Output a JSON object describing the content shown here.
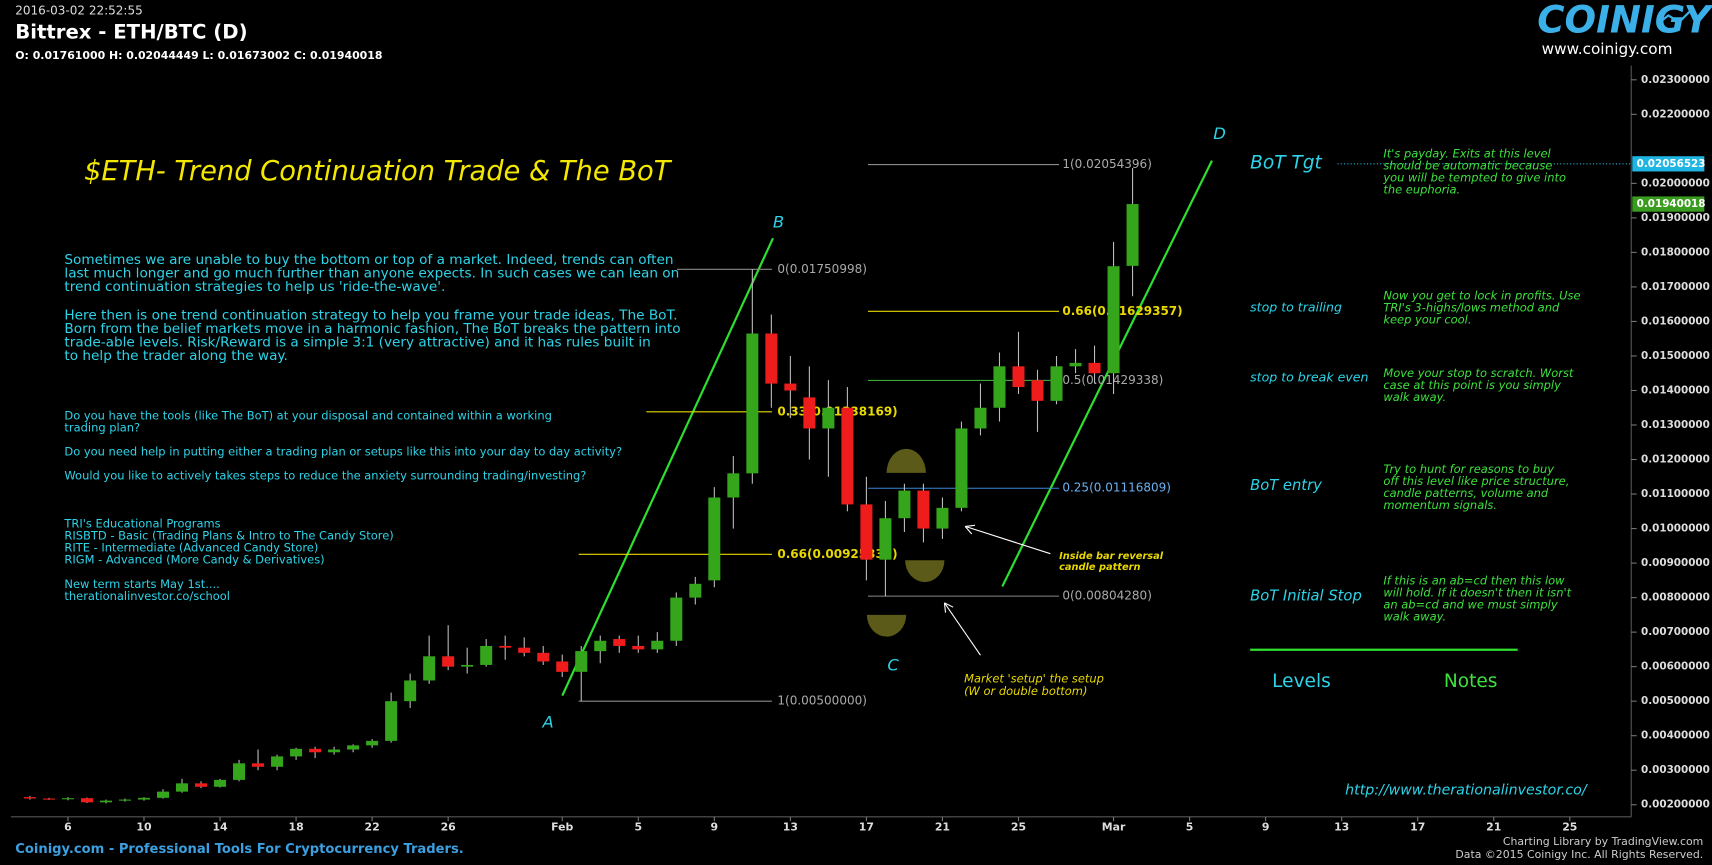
{
  "header": {
    "timestamp": "2016-03-02 22:52:55",
    "symbol": "Bittrex - ETH/BTC (D)",
    "ohlc": "O: 0.01761000 H: 0.02044449 L: 0.01673002 C: 0.01940018"
  },
  "logo": {
    "name": "COINIGY",
    "url": "www.coinigy.com"
  },
  "footer": {
    "left": "Coinigy.com - Professional Tools For Cryptocurrency Traders.",
    "right1": "Charting Library by TradingView.com",
    "right2": "Data ©2015 Coinigy Inc. All Rights Reserved."
  },
  "chart_data": {
    "type": "candlestick",
    "title": "$ETH- Trend Continuation Trade & The BoT",
    "x": [
      "01-04",
      "01-05",
      "01-06",
      "01-07",
      "01-08",
      "01-09",
      "01-10",
      "01-11",
      "01-12",
      "01-13",
      "01-14",
      "01-15",
      "01-16",
      "01-17",
      "01-18",
      "01-19",
      "01-20",
      "01-21",
      "01-22",
      "01-23",
      "01-24",
      "01-25",
      "01-26",
      "01-27",
      "01-28",
      "01-29",
      "01-30",
      "01-31",
      "02-01",
      "02-02",
      "02-03",
      "02-04",
      "02-05",
      "02-06",
      "02-07",
      "02-08",
      "02-09",
      "02-10",
      "02-11",
      "02-12",
      "02-13",
      "02-14",
      "02-15",
      "02-16",
      "02-17",
      "02-18",
      "02-19",
      "02-20",
      "02-21",
      "02-22",
      "02-23",
      "02-24",
      "02-25",
      "02-26",
      "02-27",
      "02-28",
      "02-29",
      "03-01",
      "03-02"
    ],
    "open": [
      0.00222,
      0.00218,
      0.00216,
      0.00219,
      0.00207,
      0.00212,
      0.00215,
      0.0022,
      0.00238,
      0.00262,
      0.00252,
      0.00272,
      0.0032,
      0.0031,
      0.0034,
      0.00362,
      0.00352,
      0.0036,
      0.00372,
      0.00385,
      0.005,
      0.0056,
      0.0063,
      0.006,
      0.00605,
      0.0066,
      0.00655,
      0.0064,
      0.00615,
      0.00585,
      0.00645,
      0.0068,
      0.0066,
      0.0065,
      0.00675,
      0.008,
      0.0085,
      0.0109,
      0.0116,
      0.01565,
      0.0142,
      0.0138,
      0.0129,
      0.0135,
      0.0107,
      0.0091,
      0.0103,
      0.0111,
      0.01,
      0.0106,
      0.0129,
      0.0135,
      0.0147,
      0.0143,
      0.0137,
      0.0147,
      0.0148,
      0.0145,
      0.01761
    ],
    "high": [
      0.00225,
      0.0022,
      0.00222,
      0.00221,
      0.00215,
      0.00218,
      0.00222,
      0.00245,
      0.00275,
      0.00268,
      0.00275,
      0.0033,
      0.0036,
      0.00345,
      0.00365,
      0.00368,
      0.00368,
      0.00375,
      0.0039,
      0.00525,
      0.0058,
      0.0069,
      0.0072,
      0.00655,
      0.0068,
      0.0069,
      0.00685,
      0.0066,
      0.00635,
      0.0066,
      0.0069,
      0.0069,
      0.0069,
      0.007,
      0.00815,
      0.0086,
      0.0112,
      0.0121,
      0.01750998,
      0.0162,
      0.015,
      0.0147,
      0.0143,
      0.0141,
      0.0115,
      0.0108,
      0.0113,
      0.0113,
      0.0109,
      0.0131,
      0.0142,
      0.0151,
      0.0157,
      0.0146,
      0.015,
      0.0152,
      0.0153,
      0.0183,
      0.02044449
    ],
    "low": [
      0.00215,
      0.00214,
      0.00213,
      0.00205,
      0.00204,
      0.00209,
      0.00212,
      0.00218,
      0.00235,
      0.00248,
      0.0025,
      0.00268,
      0.003,
      0.003,
      0.0033,
      0.00335,
      0.00345,
      0.00352,
      0.00365,
      0.0038,
      0.0048,
      0.0055,
      0.0059,
      0.0058,
      0.006,
      0.0062,
      0.0063,
      0.00605,
      0.0057,
      0.005,
      0.0061,
      0.0064,
      0.0064,
      0.0064,
      0.0066,
      0.0078,
      0.0083,
      0.01,
      0.0113,
      0.0135,
      0.0132,
      0.012,
      0.0115,
      0.0105,
      0.0085,
      0.0080428,
      0.0099,
      0.0096,
      0.0097,
      0.0105,
      0.0127,
      0.0131,
      0.0139,
      0.0128,
      0.0136,
      0.0145,
      0.0142,
      0.0139,
      0.01673002
    ],
    "close": [
      0.00218,
      0.00216,
      0.00219,
      0.00207,
      0.00212,
      0.00215,
      0.0022,
      0.00238,
      0.00262,
      0.00252,
      0.00272,
      0.0032,
      0.0031,
      0.0034,
      0.00362,
      0.00352,
      0.0036,
      0.00372,
      0.00385,
      0.005,
      0.0056,
      0.0063,
      0.006,
      0.00605,
      0.0066,
      0.00655,
      0.0064,
      0.00615,
      0.00585,
      0.00645,
      0.00675,
      0.0066,
      0.0065,
      0.00675,
      0.008,
      0.0084,
      0.0109,
      0.0116,
      0.01565,
      0.0142,
      0.014,
      0.0129,
      0.0135,
      0.0107,
      0.0091,
      0.0103,
      0.0111,
      0.01,
      0.0106,
      0.0129,
      0.0135,
      0.0147,
      0.0141,
      0.0137,
      0.0147,
      0.0148,
      0.0145,
      0.0176,
      0.01940018
    ],
    "up_color": "#35a61c",
    "down_color": "#ef1c1c",
    "xlim": [
      "01-03",
      "03-28"
    ],
    "xticks": [
      {
        "value": "01-06",
        "label": "6"
      },
      {
        "value": "01-10",
        "label": "10"
      },
      {
        "value": "01-14",
        "label": "14"
      },
      {
        "value": "01-18",
        "label": "18"
      },
      {
        "value": "01-22",
        "label": "22"
      },
      {
        "value": "01-26",
        "label": "26"
      },
      {
        "value": "02-01",
        "label": "Feb"
      },
      {
        "value": "02-05",
        "label": "5"
      },
      {
        "value": "02-09",
        "label": "9"
      },
      {
        "value": "02-13",
        "label": "13"
      },
      {
        "value": "02-17",
        "label": "17"
      },
      {
        "value": "02-21",
        "label": "21"
      },
      {
        "value": "02-25",
        "label": "25"
      },
      {
        "value": "03-01",
        "label": "Mar"
      },
      {
        "value": "03-05",
        "label": "5"
      },
      {
        "value": "03-09",
        "label": "9"
      },
      {
        "value": "03-13",
        "label": "13"
      },
      {
        "value": "03-17",
        "label": "17"
      },
      {
        "value": "03-21",
        "label": "21"
      },
      {
        "value": "03-25",
        "label": "25"
      }
    ],
    "ylim": [
      0.00165,
      0.02341
    ],
    "yticks": [
      {
        "value": 0.002,
        "label": "0.00200000"
      },
      {
        "value": 0.003,
        "label": "0.00300000"
      },
      {
        "value": 0.004,
        "label": "0.00400000"
      },
      {
        "value": 0.005,
        "label": "0.00500000"
      },
      {
        "value": 0.006,
        "label": "0.00600000"
      },
      {
        "value": 0.007,
        "label": "0.00700000"
      },
      {
        "value": 0.008,
        "label": "0.00800000"
      },
      {
        "value": 0.009,
        "label": "0.00900000"
      },
      {
        "value": 0.01,
        "label": "0.01000000"
      },
      {
        "value": 0.011,
        "label": "0.01100000"
      },
      {
        "value": 0.012,
        "label": "0.01200000"
      },
      {
        "value": 0.013,
        "label": "0.01300000"
      },
      {
        "value": 0.014,
        "label": "0.01400000"
      },
      {
        "value": 0.015,
        "label": "0.01500000"
      },
      {
        "value": 0.016,
        "label": "0.01600000"
      },
      {
        "value": 0.017,
        "label": "0.01700000"
      },
      {
        "value": 0.018,
        "label": "0.01800000"
      },
      {
        "value": 0.019,
        "label": "0.01900000"
      },
      {
        "value": 0.02,
        "label": "0.02000000"
      },
      {
        "value": 0.022,
        "label": "0.02200000"
      },
      {
        "value": 0.023,
        "label": "0.02300000"
      }
    ],
    "price_tags": [
      {
        "value": 0.02056523,
        "color": "#1fb5e3"
      },
      {
        "value": 0.01940018,
        "color": "#3a9c1f"
      }
    ],
    "fib_ab": [
      {
        "label": "0(0.01750998)",
        "value": 0.01750998,
        "color": "#8a8a8a"
      },
      {
        "label": "0.33(0.01338169)",
        "value": 0.01338169,
        "color": "#e8d800"
      },
      {
        "label": "0.66(0.00925339)",
        "value": 0.00925339,
        "color": "#e8d800"
      },
      {
        "label": "1(0.00500000)",
        "value": 0.005,
        "color": "#8a8a8a"
      }
    ],
    "fib_cd": [
      {
        "label": "1(0.02054396)",
        "value": 0.02054396,
        "color": "#8a8a8a"
      },
      {
        "label": "0.66(0.01629357)",
        "value": 0.01629357,
        "color": "#e8d800"
      },
      {
        "label": "0.5(0.01429338)",
        "value": 0.01429338,
        "color": "#3fbf3f"
      },
      {
        "label": "0.25(0.01116809)",
        "value": 0.01116809,
        "color": "#3a86d6"
      },
      {
        "label": "0(0.00804280)",
        "value": 0.0080428,
        "color": "#8a8a8a"
      }
    ],
    "points": [
      "A",
      "B",
      "C",
      "D"
    ],
    "annotations": [
      [
        "Inside bar reversal",
        "candle pattern"
      ],
      [
        "Market 'setup' the setup",
        "(W or double bottom)"
      ]
    ]
  },
  "text": {
    "paragraphs": [
      [
        "Sometimes we are unable to buy the bottom or top of a market. Indeed, trends can often",
        "last much longer and go much further than anyone expects. In such cases we can lean on",
        "trend continuation strategies to help us 'ride-the-wave'."
      ],
      [
        "Here then is one trend continuation strategy to help you frame your trade ideas, The BoT.",
        "Born from the belief markets move in a harmonic fashion, The BoT breaks the pattern into",
        "trade-able levels. Risk/Reward is a simple 3:1 (very attractive) and it has rules built in",
        "to help the trader along the way."
      ]
    ],
    "questions": [
      [
        "Do you have the tools (like The BoT) at your disposal and contained within a working",
        "trading plan?"
      ],
      [
        "Do you need help in putting either a trading plan or setups like this into your day to day activity?"
      ],
      [
        "Would you like to actively takes steps to reduce the anxiety surrounding trading/investing?"
      ]
    ],
    "programs": [
      "TRI's Educational Programs",
      "RISBTD - Basic (Trading Plans & Intro to The Candy Store)",
      "RITE - Intermediate (Advanced Candy Store)",
      "RIGM - Advanced (More Candy & Derivatives)"
    ],
    "term": [
      "New term starts May 1st....",
      "therationalinvestor.co/school"
    ]
  },
  "plan": {
    "levels_heading": "Levels",
    "notes_heading": "Notes",
    "url": "http://www.therationalinvestor.co/",
    "rows": [
      {
        "level": "BoT Tgt",
        "note": [
          "It's payday. Exits at this level",
          "should be automatic because",
          "you will be tempted to give into",
          "the euphoria."
        ]
      },
      {
        "level": "stop to trailing",
        "note": [
          "Now you get to lock in profits. Use",
          "TRI's 3-highs/lows method and",
          "keep your cool."
        ]
      },
      {
        "level": "stop to break even",
        "note": [
          "Move your stop to scratch. Worst",
          "case at this point is you simply",
          "walk away."
        ]
      },
      {
        "level": "BoT entry",
        "note": [
          "Try to hunt for reasons to buy",
          "off this level like price structure,",
          "candle patterns, volume and",
          "momentum signals."
        ]
      },
      {
        "level": "BoT Initial Stop",
        "note": [
          "If this is an ab=cd then this low",
          "will hold. If it doesn't then it isn't",
          "an ab=cd and we must simply",
          "walk away."
        ]
      }
    ]
  }
}
